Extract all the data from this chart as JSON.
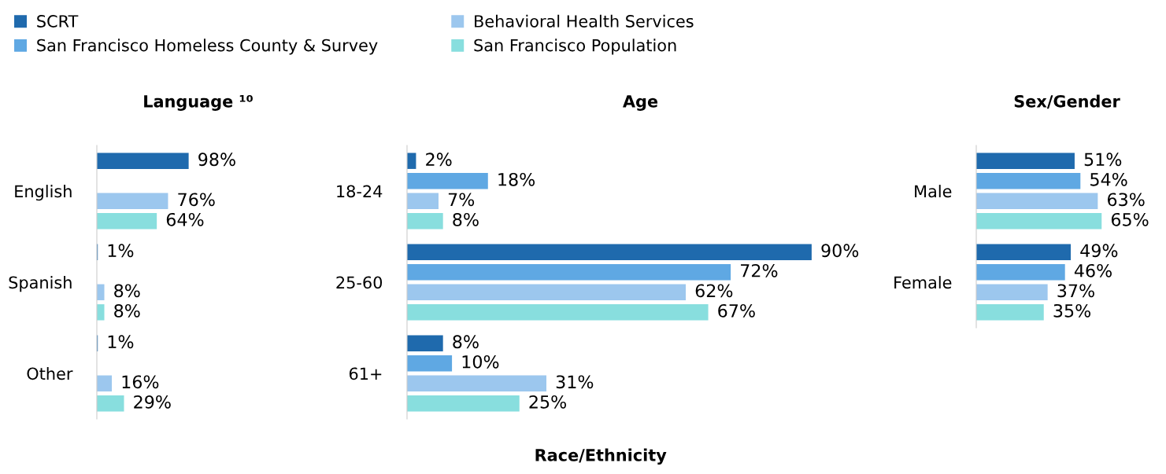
{
  "chart_data": [
    {
      "type": "bar",
      "orientation": "horizontal",
      "title": "Language ¹⁰",
      "legend": "top",
      "tick_labels": "y",
      "categories": [
        "English",
        "Spanish",
        "Other"
      ],
      "series": [
        {
          "name": "SCRT",
          "color": "#1f6aad",
          "values": [
            98,
            1,
            1
          ],
          "value_labels": [
            "98%",
            "1%",
            "1%"
          ]
        },
        {
          "name": "San Francisco Homeless County & Survey",
          "color": "#5fa8e3",
          "values": [
            null,
            null,
            null
          ],
          "value_labels": [
            null,
            null,
            null
          ]
        },
        {
          "name": "Behavioral Health Services",
          "color": "#9cc7ee",
          "values": [
            76,
            8,
            16
          ],
          "value_labels": [
            "76%",
            "8%",
            "16%"
          ]
        },
        {
          "name": "San Francisco Population",
          "color": "#88dede",
          "values": [
            64,
            8,
            29
          ],
          "value_labels": [
            "64%",
            "8%",
            "29%"
          ]
        }
      ]
    },
    {
      "type": "bar",
      "orientation": "horizontal",
      "title": "Age",
      "tick_labels": "y",
      "annotations": [
        "Race/Ethnicity"
      ],
      "categories": [
        "18-24",
        "25-60",
        "61+"
      ],
      "series": [
        {
          "color": "#1f6aad",
          "values": [
            2,
            90,
            8
          ],
          "value_labels": [
            "2%",
            "90%",
            "8%"
          ]
        },
        {
          "color": "#5fa8e3",
          "values": [
            18,
            72,
            10
          ],
          "value_labels": [
            "18%",
            "72%",
            "10%"
          ]
        },
        {
          "color": "#9cc7ee",
          "values": [
            7,
            62,
            31
          ],
          "value_labels": [
            "7%",
            "62%",
            "31%"
          ]
        },
        {
          "color": "#88dede",
          "values": [
            8,
            67,
            25
          ],
          "value_labels": [
            "8%",
            "67%",
            "25%"
          ]
        }
      ]
    },
    {
      "type": "bar",
      "orientation": "horizontal",
      "title": "Sex/Gender",
      "tick_labels": "y",
      "categories": [
        "Male",
        "Female"
      ],
      "series": [
        {
          "color": "#1f6aad",
          "values": [
            51,
            49
          ],
          "value_labels": [
            "51%",
            "49%"
          ]
        },
        {
          "color": "#5fa8e3",
          "values": [
            54,
            46
          ],
          "value_labels": [
            "54%",
            "46%"
          ]
        },
        {
          "color": "#9cc7ee",
          "values": [
            63,
            37
          ],
          "value_labels": [
            "63%",
            "37%"
          ]
        },
        {
          "color": "#88dede",
          "values": [
            65,
            35
          ],
          "value_labels": [
            "65%",
            "35%"
          ]
        }
      ]
    }
  ]
}
